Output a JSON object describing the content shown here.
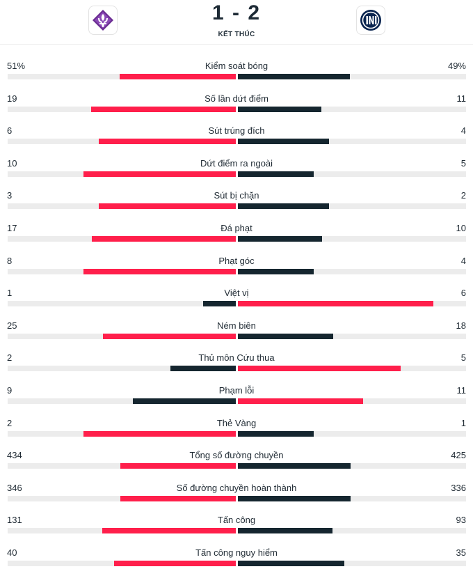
{
  "match": {
    "home_score": "1",
    "separator": "-",
    "away_score": "2",
    "status": "KẾT THÚC",
    "home_logo_icon": "fiorentina-lily-icon",
    "away_logo_icon": "inter-crest-icon"
  },
  "colors": {
    "home_bar": "#ff1f4b",
    "away_bar": "#15262f",
    "leader_highlight": "#ff1f4b",
    "fiorentina_purple": "#6a2c91",
    "inter_navy": "#0a2550"
  },
  "stats": [
    {
      "label": "Kiểm soát bóng",
      "home": "51%",
      "away": "49%",
      "home_num": 51,
      "away_num": 49
    },
    {
      "label": "Số lần dứt điểm",
      "home": "19",
      "away": "11",
      "home_num": 19,
      "away_num": 11
    },
    {
      "label": "Sút trúng đích",
      "home": "6",
      "away": "4",
      "home_num": 6,
      "away_num": 4
    },
    {
      "label": "Dứt điểm ra ngoài",
      "home": "10",
      "away": "5",
      "home_num": 10,
      "away_num": 5
    },
    {
      "label": "Sút bị chặn",
      "home": "3",
      "away": "2",
      "home_num": 3,
      "away_num": 2
    },
    {
      "label": "Đá phạt",
      "home": "17",
      "away": "10",
      "home_num": 17,
      "away_num": 10
    },
    {
      "label": "Phạt góc",
      "home": "8",
      "away": "4",
      "home_num": 8,
      "away_num": 4
    },
    {
      "label": "Việt vị",
      "home": "1",
      "away": "6",
      "home_num": 1,
      "away_num": 6
    },
    {
      "label": "Ném biên",
      "home": "25",
      "away": "18",
      "home_num": 25,
      "away_num": 18
    },
    {
      "label": "Thủ môn Cứu thua",
      "home": "2",
      "away": "5",
      "home_num": 2,
      "away_num": 5
    },
    {
      "label": "Phạm lỗi",
      "home": "9",
      "away": "11",
      "home_num": 9,
      "away_num": 11
    },
    {
      "label": "Thẻ Vàng",
      "home": "2",
      "away": "1",
      "home_num": 2,
      "away_num": 1
    },
    {
      "label": "Tổng số đường chuyền",
      "home": "434",
      "away": "425",
      "home_num": 434,
      "away_num": 425
    },
    {
      "label": "Số đường chuyền hoàn thành",
      "home": "346",
      "away": "336",
      "home_num": 346,
      "away_num": 336
    },
    {
      "label": "Tấn công",
      "home": "131",
      "away": "93",
      "home_num": 131,
      "away_num": 93
    },
    {
      "label": "Tấn công nguy hiểm",
      "home": "40",
      "away": "35",
      "home_num": 40,
      "away_num": 35
    }
  ]
}
